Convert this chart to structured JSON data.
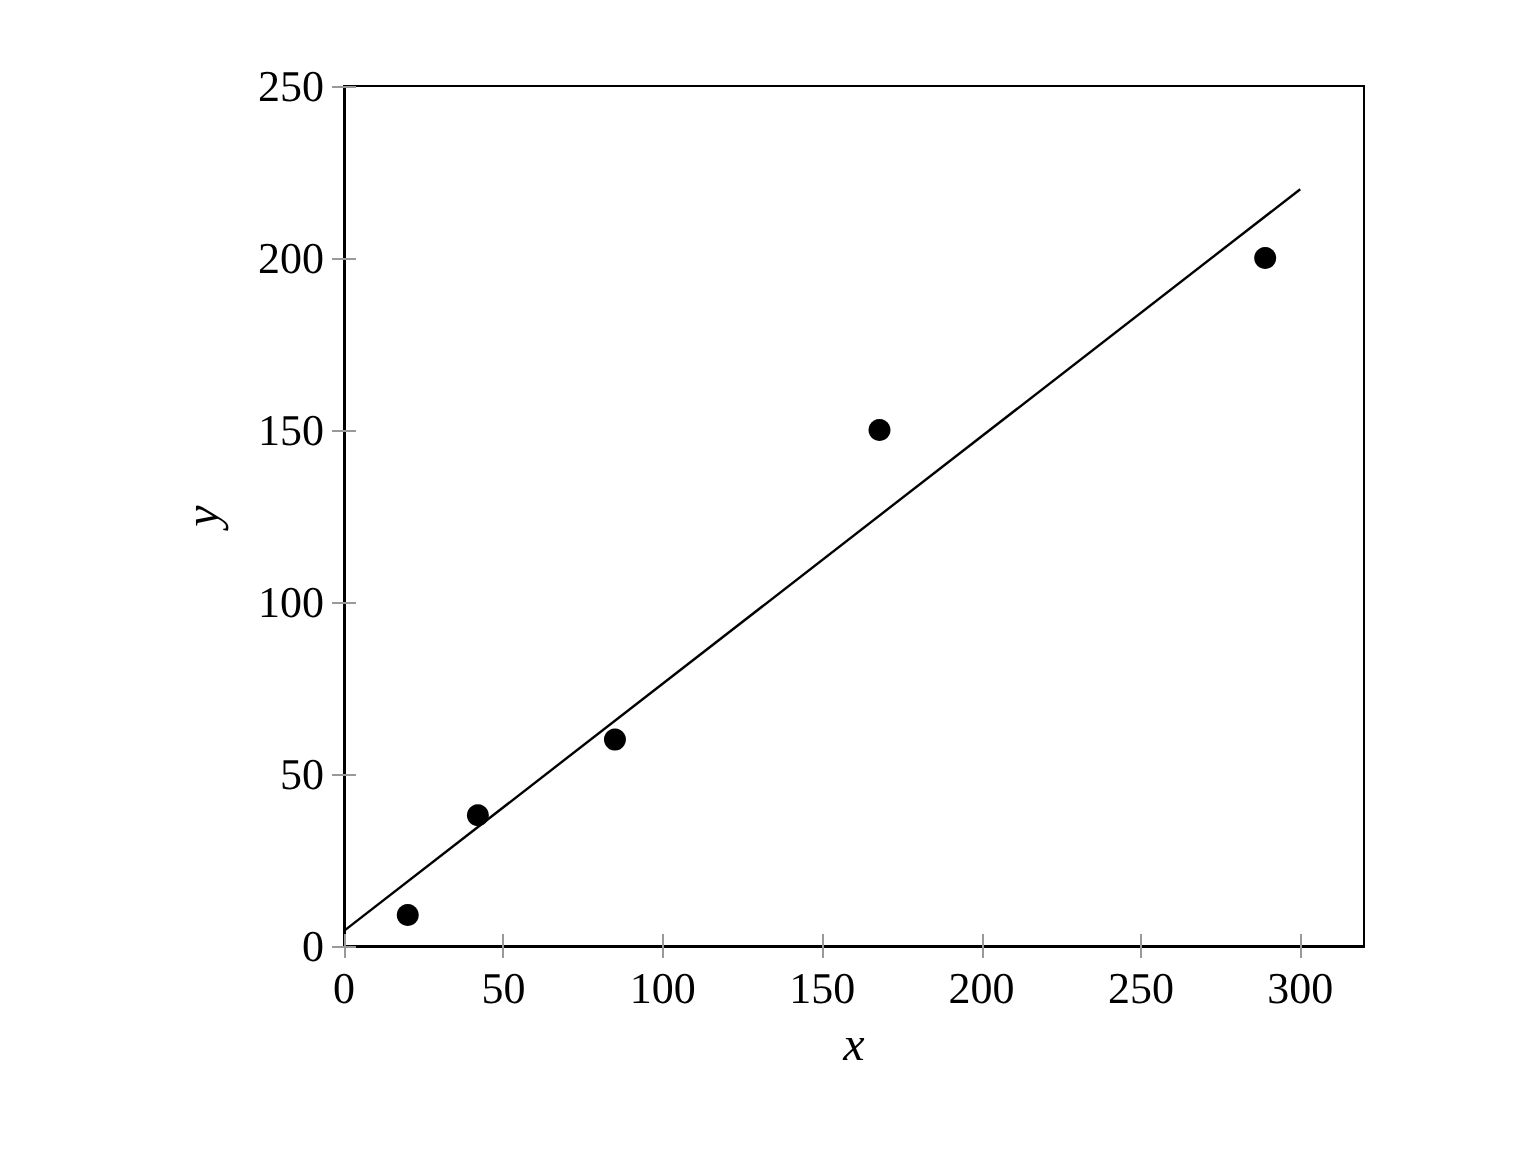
{
  "chart_data": {
    "type": "scatter",
    "xlabel": "x",
    "ylabel": "y",
    "series": [
      {
        "color": "#000000",
        "x": [
          20,
          42,
          85,
          168,
          289
        ],
        "values": [
          9,
          38,
          60,
          150,
          200
        ],
        "marker": "circle"
      },
      {
        "type": "line",
        "color": "#000000",
        "x": [
          0,
          300
        ],
        "values": [
          4.4,
          220
        ],
        "marker": "none",
        "line_style": "solid"
      }
    ],
    "xlim": [
      0,
      320
    ],
    "ylim": [
      0,
      250
    ],
    "xticks": [
      0,
      50,
      100,
      150,
      200,
      250,
      300
    ],
    "yticks": [
      0,
      50,
      100,
      150,
      200,
      250
    ]
  }
}
